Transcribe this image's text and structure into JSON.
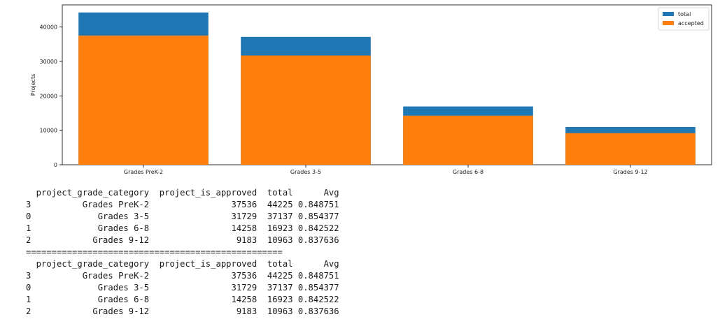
{
  "chart_data": {
    "type": "bar",
    "stacked_overlay": true,
    "title": "",
    "xlabel": "",
    "ylabel": "Projects",
    "categories": [
      "Grades PreK-2",
      "Grades 3-5",
      "Grades 6-8",
      "Grades 9-12"
    ],
    "series": [
      {
        "name": "total",
        "values": [
          44225,
          37137,
          16923,
          10963
        ],
        "color": "#1f77b4"
      },
      {
        "name": "accepted",
        "values": [
          37536,
          31729,
          14258,
          9183
        ],
        "color": "#ff7f0e"
      }
    ],
    "yticks": [
      0,
      10000,
      20000,
      30000,
      40000
    ],
    "ylim": [
      0,
      46434
    ],
    "legend_position": "top-right",
    "grid": false
  },
  "output": {
    "header": [
      "project_grade_category",
      "project_is_approved",
      "total",
      "Avg"
    ],
    "rows": [
      {
        "index": "3",
        "category": "Grades PreK-2",
        "approved": "37536",
        "total": "44225",
        "avg": "0.848751"
      },
      {
        "index": "0",
        "category": "Grades 3-5",
        "approved": "31729",
        "total": "37137",
        "avg": "0.854377"
      },
      {
        "index": "1",
        "category": "Grades 6-8",
        "approved": "14258",
        "total": "16923",
        "avg": "0.842522"
      },
      {
        "index": "2",
        "category": "Grades 9-12",
        "approved": "9183",
        "total": "10963",
        "avg": "0.837636"
      }
    ],
    "separator": "=================================================="
  }
}
